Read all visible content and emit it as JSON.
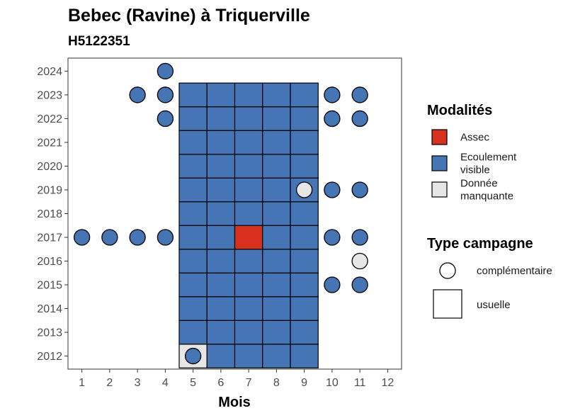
{
  "chart_data": {
    "type": "heatmap",
    "title": "Bebec (Ravine) à Triquerville",
    "subtitle": "H5122351",
    "xlabel": "Mois",
    "ylabel": "",
    "x_ticks": [
      1,
      2,
      3,
      4,
      5,
      6,
      7,
      8,
      9,
      10,
      11,
      12
    ],
    "y_ticks": [
      2012,
      2013,
      2014,
      2015,
      2016,
      2017,
      2018,
      2019,
      2020,
      2021,
      2022,
      2023,
      2024
    ],
    "xlim": [
      0.5,
      12.5
    ],
    "ylim": [
      2011.45,
      2024.55
    ],
    "grid": false,
    "legend_placement": "right",
    "colors": {
      "Assec": "#d7301f",
      "Ecoulement visible": "#4575b4",
      "Donnée manquante": "#e6e6e6"
    },
    "legends": {
      "modalites": {
        "title": "Modalités",
        "items": [
          {
            "key": "Assec",
            "lines": [
              "Assec"
            ]
          },
          {
            "key": "Ecoulement visible",
            "lines": [
              "Ecoulement",
              "visible"
            ]
          },
          {
            "key": "Donnée manquante",
            "lines": [
              "Donnée",
              "manquante"
            ]
          }
        ]
      },
      "type_campagne": {
        "title": "Type campagne",
        "items": [
          {
            "key": "complémentaire",
            "shape": "circle",
            "label": "complémentaire"
          },
          {
            "key": "usuelle",
            "shape": "square",
            "label": "usuelle"
          }
        ]
      }
    },
    "usuelle_observations": {
      "months": [
        5,
        6,
        7,
        8,
        9
      ],
      "years_from": 2012,
      "years_to": 2023,
      "default": "Ecoulement visible",
      "exceptions": [
        {
          "month": 7,
          "year": 2017,
          "modalite": "Assec"
        },
        {
          "month": 5,
          "year": 2012,
          "modalite": "Donnée manquante"
        }
      ]
    },
    "complementaire_observations": [
      {
        "month": 4,
        "year": 2024,
        "modalite": "Ecoulement visible"
      },
      {
        "month": 3,
        "year": 2023,
        "modalite": "Ecoulement visible"
      },
      {
        "month": 4,
        "year": 2023,
        "modalite": "Ecoulement visible"
      },
      {
        "month": 10,
        "year": 2023,
        "modalite": "Ecoulement visible"
      },
      {
        "month": 11,
        "year": 2023,
        "modalite": "Ecoulement visible"
      },
      {
        "month": 4,
        "year": 2022,
        "modalite": "Ecoulement visible"
      },
      {
        "month": 10,
        "year": 2022,
        "modalite": "Ecoulement visible"
      },
      {
        "month": 11,
        "year": 2022,
        "modalite": "Ecoulement visible"
      },
      {
        "month": 9,
        "year": 2019,
        "modalite": "Donnée manquante"
      },
      {
        "month": 10,
        "year": 2019,
        "modalite": "Ecoulement visible"
      },
      {
        "month": 11,
        "year": 2019,
        "modalite": "Ecoulement visible"
      },
      {
        "month": 1,
        "year": 2017,
        "modalite": "Ecoulement visible"
      },
      {
        "month": 2,
        "year": 2017,
        "modalite": "Ecoulement visible"
      },
      {
        "month": 3,
        "year": 2017,
        "modalite": "Ecoulement visible"
      },
      {
        "month": 4,
        "year": 2017,
        "modalite": "Ecoulement visible"
      },
      {
        "month": 10,
        "year": 2017,
        "modalite": "Ecoulement visible"
      },
      {
        "month": 11,
        "year": 2017,
        "modalite": "Ecoulement visible"
      },
      {
        "month": 11,
        "year": 2016,
        "modalite": "Donnée manquante"
      },
      {
        "month": 10,
        "year": 2015,
        "modalite": "Ecoulement visible"
      },
      {
        "month": 11,
        "year": 2015,
        "modalite": "Ecoulement visible"
      },
      {
        "month": 5,
        "year": 2012,
        "modalite": "Ecoulement visible"
      }
    ]
  }
}
